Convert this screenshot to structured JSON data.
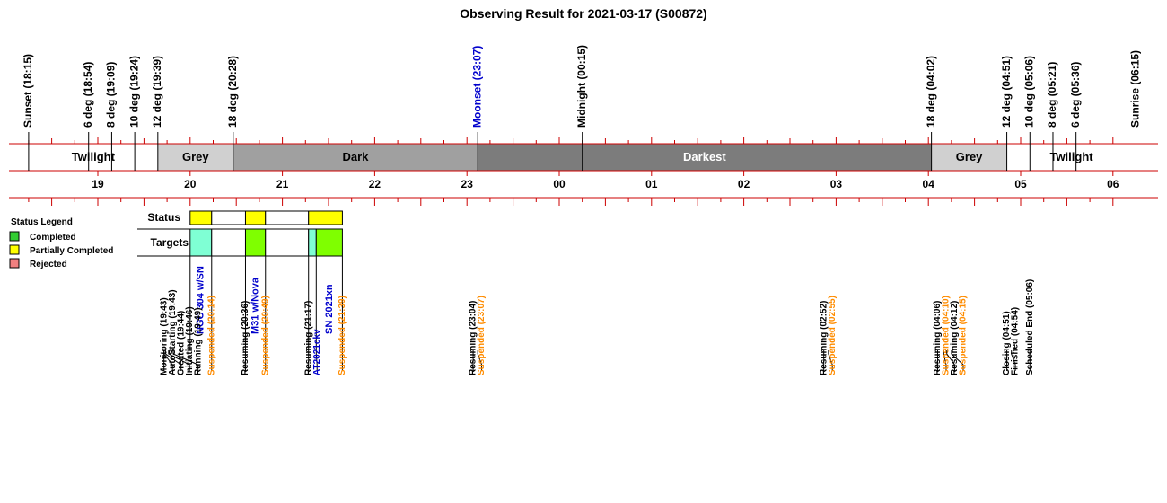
{
  "chart_data": {
    "type": "timeline",
    "title": "Observing Result for 2021-03-17 (S00872)",
    "time_axis": {
      "hour_labels": [
        {
          "t": 19.0,
          "label": "19"
        },
        {
          "t": 20.0,
          "label": "20"
        },
        {
          "t": 21.0,
          "label": "21"
        },
        {
          "t": 22.0,
          "label": "22"
        },
        {
          "t": 23.0,
          "label": "23"
        },
        {
          "t": 24.0,
          "label": "00"
        },
        {
          "t": 25.0,
          "label": "01"
        },
        {
          "t": 26.0,
          "label": "02"
        },
        {
          "t": 27.0,
          "label": "03"
        },
        {
          "t": 28.0,
          "label": "04"
        },
        {
          "t": 29.0,
          "label": "05"
        },
        {
          "t": 30.0,
          "label": "06"
        }
      ]
    },
    "sky_events": [
      {
        "t": 18.25,
        "label": "Sunset (18:15)",
        "color": "#000000"
      },
      {
        "t": 18.9,
        "label": "6 deg (18:54)",
        "color": "#000000"
      },
      {
        "t": 19.15,
        "label": "8 deg (19:09)",
        "color": "#000000"
      },
      {
        "t": 19.4,
        "label": "10 deg (19:24)",
        "color": "#000000"
      },
      {
        "t": 19.65,
        "label": "12 deg (19:39)",
        "color": "#000000"
      },
      {
        "t": 20.4667,
        "label": "18 deg (20:28)",
        "color": "#000000"
      },
      {
        "t": 23.1167,
        "label": "Moonset (23:07)",
        "color": "#0000cc"
      },
      {
        "t": 24.25,
        "label": "Midnight (00:15)",
        "color": "#000000"
      },
      {
        "t": 28.0333,
        "label": "18 deg (04:02)",
        "color": "#000000"
      },
      {
        "t": 28.85,
        "label": "12 deg (04:51)",
        "color": "#000000"
      },
      {
        "t": 29.1,
        "label": "10 deg (05:06)",
        "color": "#000000"
      },
      {
        "t": 29.35,
        "label": "8 deg (05:21)",
        "color": "#000000"
      },
      {
        "t": 29.6,
        "label": "6 deg (05:36)",
        "color": "#000000"
      },
      {
        "t": 30.25,
        "label": "Sunrise (06:15)",
        "color": "#000000"
      }
    ],
    "sky_bands": [
      {
        "start": 18.25,
        "end": 19.65,
        "label": "Twilight",
        "fill": "#ffffff",
        "text": "#000000"
      },
      {
        "start": 19.65,
        "end": 20.4667,
        "label": "Grey",
        "fill": "#d0d0d0",
        "text": "#000000"
      },
      {
        "start": 20.4667,
        "end": 23.1167,
        "label": "Dark",
        "fill": "#a0a0a0",
        "text": "#000000"
      },
      {
        "start": 23.1167,
        "end": 28.0333,
        "label": "Darkest",
        "fill": "#7c7c7c",
        "text": "#ffffff"
      },
      {
        "start": 28.0333,
        "end": 28.85,
        "label": "Grey",
        "fill": "#d0d0d0",
        "text": "#000000"
      },
      {
        "start": 28.85,
        "end": 30.25,
        "label": "Twilight",
        "fill": "#ffffff",
        "text": "#000000"
      }
    ],
    "status_row_label": "Status",
    "targets_row_label": "Targets",
    "status_segments": [
      {
        "start": 20.0,
        "end": 20.2333,
        "fill": "#ffff00"
      },
      {
        "start": 20.2333,
        "end": 20.6,
        "fill": "#ffffff"
      },
      {
        "start": 20.6,
        "end": 20.8167,
        "fill": "#ffff00"
      },
      {
        "start": 20.8167,
        "end": 21.2833,
        "fill": "#ffffff"
      },
      {
        "start": 21.2833,
        "end": 21.65,
        "fill": "#ffff00"
      }
    ],
    "target_segments": [
      {
        "start": 20.0,
        "end": 20.2333,
        "fill": "#7fffd4"
      },
      {
        "start": 20.2333,
        "end": 20.6,
        "fill": "#ffffff"
      },
      {
        "start": 20.6,
        "end": 20.8167,
        "fill": "#7fff00"
      },
      {
        "start": 20.8167,
        "end": 21.2833,
        "fill": "#ffffff"
      },
      {
        "start": 21.2833,
        "end": 21.3667,
        "fill": "#7fffd4"
      },
      {
        "start": 21.3667,
        "end": 21.65,
        "fill": "#7fff00"
      }
    ],
    "target_labels": [
      {
        "t": 20.1167,
        "label": "NGC 304 w/SN"
      },
      {
        "t": 20.7083,
        "label": "M31 w/Nova"
      },
      {
        "t": 21.5083,
        "label": "SN 2021xn"
      }
    ],
    "log_events": [
      {
        "t": 19.7167,
        "line_t": 19.7167,
        "label": "Monitoring (19:43)",
        "color": "#000000"
      },
      {
        "t": 19.7167,
        "line_t": 19.7167,
        "label": "AutoStarting (19:43)",
        "color": "#000000"
      },
      {
        "t": 19.7333,
        "line_t": 19.7333,
        "label": "Created (19:44)",
        "color": "#000000"
      },
      {
        "t": 19.7667,
        "line_t": 19.7667,
        "label": "Initiating (19:46)",
        "color": "#000000"
      },
      {
        "t": 19.8167,
        "line_t": 19.8167,
        "label": "Running (19:49)",
        "color": "#000000"
      },
      {
        "t": 20.2333,
        "line_t": 20.2333,
        "label": "Suspended (20:14)",
        "color": "#ff8c00"
      },
      {
        "t": 20.6,
        "line_t": 20.6,
        "label": "Resuming (20:36)",
        "color": "#000000"
      },
      {
        "t": 20.8167,
        "line_t": 20.8167,
        "label": "Suspended (20:49)",
        "color": "#ff8c00"
      },
      {
        "t": 21.2833,
        "line_t": 21.2833,
        "label": "Resuming (21:17)",
        "color": "#000000"
      },
      {
        "t": 21.3667,
        "line_t": 21.3667,
        "label": "AT2021ckv",
        "color": "#0000cc"
      },
      {
        "t": 21.65,
        "line_t": 21.65,
        "label": "Suspended (21:39)",
        "color": "#ff8c00"
      },
      {
        "t": 23.0667,
        "line_t": 23.0667,
        "label": "Resuming (23:04)",
        "color": "#000000"
      },
      {
        "t": 23.1167,
        "line_t": 23.1167,
        "label": "Suspended (23:07)",
        "color": "#ff8c00"
      },
      {
        "t": 26.8667,
        "line_t": 26.8667,
        "label": "Resuming (02:52)",
        "color": "#000000"
      },
      {
        "t": 26.9167,
        "line_t": 26.9167,
        "label": "Suspended (02:55)",
        "color": "#ff8c00"
      },
      {
        "t": 28.1,
        "line_t": 28.1,
        "label": "Resuming (04:06)",
        "color": "#000000"
      },
      {
        "t": 28.1667,
        "line_t": 28.1667,
        "label": "Suspended (04:10)",
        "color": "#ff8c00"
      },
      {
        "t": 28.2,
        "line_t": 28.2,
        "label": "Resuming (04:12)",
        "color": "#000000"
      },
      {
        "t": 28.25,
        "line_t": 28.25,
        "label": "Suspended (04:15)",
        "color": "#ff8c00"
      },
      {
        "t": 28.85,
        "line_t": 28.85,
        "label": "Closing (04:51)",
        "color": "#000000"
      },
      {
        "t": 28.9,
        "line_t": 28.9,
        "label": "Finished (04:54)",
        "color": "#000000"
      },
      {
        "t": 29.1,
        "line_t": 29.1,
        "label": "Scheduled End (05:06)",
        "color": "#000000"
      }
    ],
    "legend": {
      "title": "Status Legend",
      "placement": "left",
      "items": [
        {
          "label": "Completed",
          "color": "#33cc33"
        },
        {
          "label": "Partially Completed",
          "color": "#ffff00"
        },
        {
          "label": "Rejected",
          "color": "#f08080"
        }
      ]
    }
  }
}
